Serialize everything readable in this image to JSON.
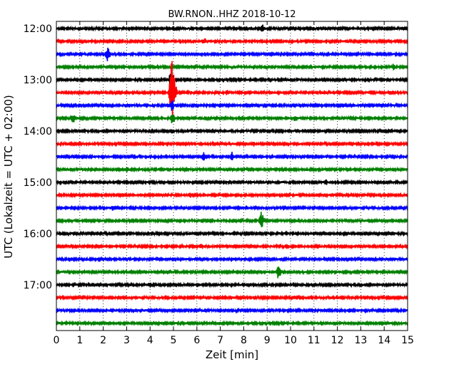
{
  "chart_data": {
    "type": "line",
    "title": "BW.RNON..HHZ 2018-10-12",
    "xlabel": "Zeit  [min]",
    "ylabel": "UTC (Lokalzeit = UTC + 02:00)",
    "xlim": [
      0,
      15
    ],
    "x_ticks": [
      "0",
      "1",
      "2",
      "3",
      "4",
      "5",
      "6",
      "7",
      "8",
      "9",
      "10",
      "11",
      "12",
      "13",
      "14",
      "15"
    ],
    "y_tick_labels": [
      "12:00",
      "13:00",
      "14:00",
      "15:00",
      "16:00",
      "17:00"
    ],
    "y_tick_trace_index": [
      0,
      4,
      8,
      12,
      16,
      20
    ],
    "grid": "vertical dotted at each minute",
    "colors": [
      "#000000",
      "#ff0000",
      "#0000ff",
      "#008000"
    ],
    "traces": [
      {
        "start": "12:00",
        "events": [
          {
            "t": 8.8,
            "amp": 0.25
          },
          {
            "t": 5.0,
            "amp": 0.12
          }
        ]
      },
      {
        "start": "12:15",
        "events": [
          {
            "t": 6.3,
            "amp": 0.2
          }
        ]
      },
      {
        "start": "12:30",
        "events": [
          {
            "t": 2.2,
            "amp": 0.55
          }
        ]
      },
      {
        "start": "12:45",
        "events": [
          {
            "t": 14.4,
            "amp": 0.2
          }
        ]
      },
      {
        "start": "13:00",
        "events": [
          {
            "t": 4.9,
            "amp": 0.7
          }
        ]
      },
      {
        "start": "13:15",
        "events": [
          {
            "t": 4.92,
            "amp": 2.6
          },
          {
            "t": 5.05,
            "amp": 0.8
          },
          {
            "t": 7.3,
            "amp": 0.15
          }
        ]
      },
      {
        "start": "13:30",
        "events": [
          {
            "t": 4.95,
            "amp": 0.4
          }
        ]
      },
      {
        "start": "13:45",
        "events": [
          {
            "t": 0.7,
            "amp": 0.35
          },
          {
            "t": 4.96,
            "amp": 0.4
          },
          {
            "t": 10.2,
            "amp": 0.2
          }
        ]
      },
      {
        "start": "14:00",
        "events": [
          {
            "t": 5.6,
            "amp": 0.12
          }
        ]
      },
      {
        "start": "14:15",
        "events": [
          {
            "t": 8.4,
            "amp": 0.15
          }
        ]
      },
      {
        "start": "14:30",
        "events": [
          {
            "t": 6.3,
            "amp": 0.3
          },
          {
            "t": 7.5,
            "amp": 0.3
          }
        ]
      },
      {
        "start": "14:45",
        "events": [
          {
            "t": 3.0,
            "amp": 0.12
          }
        ]
      },
      {
        "start": "15:00",
        "events": [
          {
            "t": 11.5,
            "amp": 0.15
          }
        ]
      },
      {
        "start": "15:15",
        "events": [
          {
            "t": 5.7,
            "amp": 0.15
          }
        ]
      },
      {
        "start": "15:30",
        "events": [
          {
            "t": 2.4,
            "amp": 0.15
          }
        ]
      },
      {
        "start": "15:45",
        "events": [
          {
            "t": 8.75,
            "amp": 0.8
          }
        ]
      },
      {
        "start": "16:00",
        "events": [
          {
            "t": 11.0,
            "amp": 0.1
          }
        ]
      },
      {
        "start": "16:15",
        "events": [
          {
            "t": 6.2,
            "amp": 0.12
          }
        ]
      },
      {
        "start": "16:30",
        "events": [
          {
            "t": 3.0,
            "amp": 0.1
          }
        ]
      },
      {
        "start": "16:45",
        "events": [
          {
            "t": 9.5,
            "amp": 0.55
          }
        ]
      },
      {
        "start": "17:00",
        "events": [
          {
            "t": 4.0,
            "amp": 0.15
          }
        ]
      },
      {
        "start": "17:15",
        "events": [
          {
            "t": 12.0,
            "amp": 0.1
          }
        ]
      },
      {
        "start": "17:30",
        "events": [
          {
            "t": 12.5,
            "amp": 0.15
          }
        ]
      },
      {
        "start": "17:45",
        "events": [
          {
            "t": 7.0,
            "amp": 0.1
          }
        ]
      }
    ]
  }
}
